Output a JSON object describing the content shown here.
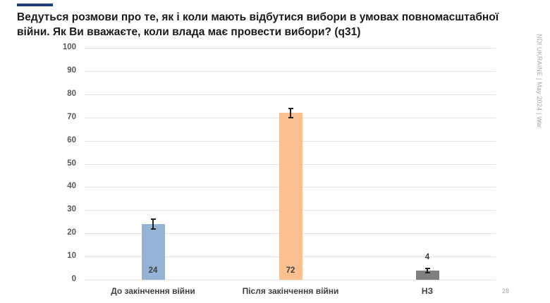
{
  "header": {
    "title": "Ведуться розмови про те, як і коли мають відбутися вибори в умовах повномасштабної війни. Як Ви вважаєте, коли влада має провести вибори? (q31)",
    "side_note": "NDI UKRAINE | May 2024 | War",
    "page_number": "28",
    "accent_color": "#1f3d7a"
  },
  "chart_data": {
    "type": "bar",
    "title": "Ведуться розмови про те, як і коли мають відбутися вибори в умовах повномасштабної війни. Як Ви вважаєте, коли влада має провести вибори? (q31)",
    "xlabel": "",
    "ylabel": "",
    "ylim": [
      0,
      100
    ],
    "yticks": [
      0,
      10,
      20,
      30,
      40,
      50,
      60,
      70,
      80,
      90,
      100
    ],
    "grid": true,
    "legend": null,
    "categories": [
      "До закінчення війни",
      "Після закінчення війни",
      "НЗ"
    ],
    "values": [
      24,
      72,
      4
    ],
    "value_labels": [
      "24",
      "72",
      "4"
    ],
    "colors": [
      "#95b3d7",
      "#fac090",
      "#7f7f7f"
    ],
    "error_bars": [
      {
        "low": 22,
        "high": 26
      },
      {
        "low": 70,
        "high": 74
      },
      {
        "low": 3,
        "high": 5
      }
    ]
  },
  "axis": {
    "yticks": [
      "100",
      "90",
      "80",
      "70",
      "60",
      "50",
      "40",
      "30",
      "20",
      "10",
      "0"
    ]
  }
}
